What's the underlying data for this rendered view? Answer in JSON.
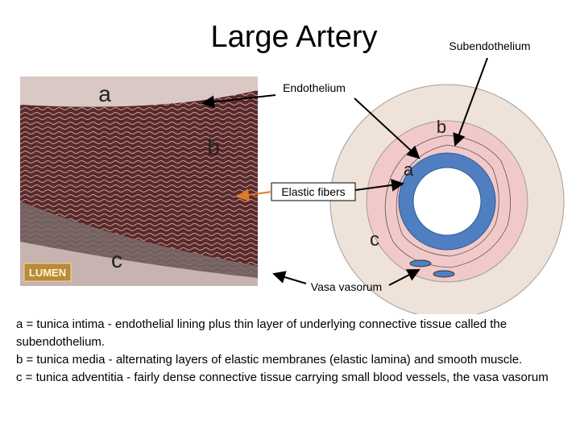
{
  "slide": {
    "title": "Large Artery",
    "micrograph": {
      "labels": [
        "a",
        "b",
        "c"
      ],
      "logo": "LUMEN"
    },
    "diagram": {
      "labels": [
        "b",
        "a",
        "c"
      ]
    },
    "callouts": {
      "subendothelium": "Subendothelium",
      "endothelium": "Endothelium",
      "elastic_fibers": "Elastic fibers",
      "vasa_vasorum": "Vasa vasorum"
    },
    "description": [
      "a = tunica intima - endothelial lining plus thin layer of underlying connective tissue called the subendothelium.",
      "b = tunica media - alternating layers of elastic membranes (elastic lamina) and smooth muscle.",
      "c = tunica adventitia - fairly dense connective tissue carrying small blood vessels, the vasa vasorum"
    ]
  }
}
